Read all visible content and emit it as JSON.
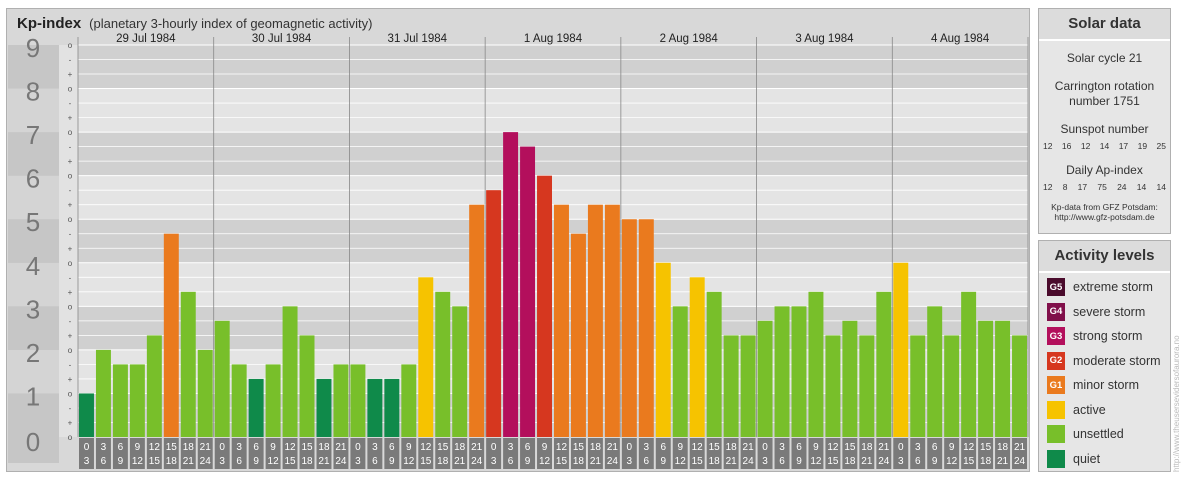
{
  "header": {
    "title": "Kp-index",
    "subtitle": "(planetary 3-hourly index of geomagnetic activity)"
  },
  "colors": {
    "quiet": "#0f8a4a",
    "unsettled": "#78bf2a",
    "active": "#f6c300",
    "G1": "#ea7a1e",
    "G2": "#d6371f",
    "G3": "#b30f5c",
    "G4": "#800f4a",
    "G5": "#4a0b2c"
  },
  "chart_data": {
    "type": "bar",
    "y_range": [
      0,
      9
    ],
    "y_ticks": [
      "0",
      "1",
      "2",
      "3",
      "4",
      "5",
      "6",
      "7",
      "8",
      "9"
    ],
    "sub_ticks": [
      "o",
      "+",
      "-"
    ],
    "days": [
      "29 Jul 1984",
      "30 Jul 1984",
      "31 Jul 1984",
      "1 Aug 1984",
      "2 Aug 1984",
      "3 Aug 1984",
      "4 Aug 1984"
    ],
    "hour_labels": [
      [
        "0",
        "3"
      ],
      [
        "3",
        "6"
      ],
      [
        "6",
        "9"
      ],
      [
        "9",
        "12"
      ],
      [
        "12",
        "15"
      ],
      [
        "15",
        "18"
      ],
      [
        "18",
        "21"
      ],
      [
        "21",
        "24"
      ]
    ],
    "values": [
      1.0,
      2.0,
      1.667,
      1.667,
      2.333,
      4.667,
      3.333,
      2.0,
      2.667,
      1.667,
      1.333,
      1.667,
      3.0,
      2.333,
      1.333,
      1.667,
      1.667,
      1.333,
      1.333,
      1.667,
      3.667,
      3.333,
      3.0,
      5.333,
      5.667,
      7.0,
      6.667,
      6.0,
      5.333,
      4.667,
      5.333,
      5.333,
      5.0,
      5.0,
      4.0,
      3.0,
      3.667,
      3.333,
      2.333,
      2.333,
      2.667,
      3.0,
      3.0,
      3.333,
      2.333,
      2.667,
      2.333,
      3.333,
      4.0,
      2.333,
      3.0,
      2.333,
      3.333,
      2.667,
      2.667,
      2.333
    ],
    "levels": [
      "quiet",
      "unsettled",
      "unsettled",
      "unsettled",
      "unsettled",
      "G1",
      "unsettled",
      "unsettled",
      "unsettled",
      "unsettled",
      "quiet",
      "unsettled",
      "unsettled",
      "unsettled",
      "quiet",
      "unsettled",
      "unsettled",
      "quiet",
      "quiet",
      "unsettled",
      "active",
      "unsettled",
      "unsettled",
      "G1",
      "G2",
      "G3",
      "G3",
      "G2",
      "G1",
      "G1",
      "G1",
      "G1",
      "G1",
      "G1",
      "active",
      "unsettled",
      "active",
      "unsettled",
      "unsettled",
      "unsettled",
      "unsettled",
      "unsettled",
      "unsettled",
      "unsettled",
      "unsettled",
      "unsettled",
      "unsettled",
      "unsettled",
      "active",
      "unsettled",
      "unsettled",
      "unsettled",
      "unsettled",
      "unsettled",
      "unsettled",
      "unsettled"
    ]
  },
  "solar": {
    "title": "Solar data",
    "cycle": "Solar cycle 21",
    "carrington_1": "Carrington rotation",
    "carrington_2": "number 1751",
    "sunspot_title": "Sunspot number",
    "sunspot": [
      "12",
      "16",
      "12",
      "14",
      "17",
      "19",
      "25"
    ],
    "ap_title": "Daily Ap-index",
    "ap": [
      "12",
      "8",
      "17",
      "75",
      "24",
      "14",
      "14"
    ],
    "source_1": "Kp-data from GFZ Potsdam:",
    "source_2": "http://www.gfz-potsdam.de"
  },
  "activity": {
    "title": "Activity levels",
    "items": [
      {
        "code": "G5",
        "label": "extreme storm",
        "color": "#4a0b2c"
      },
      {
        "code": "G4",
        "label": "severe storm",
        "color": "#800f4a"
      },
      {
        "code": "G3",
        "label": "strong storm",
        "color": "#b30f5c"
      },
      {
        "code": "G2",
        "label": "moderate storm",
        "color": "#d6371f"
      },
      {
        "code": "G1",
        "label": "minor storm",
        "color": "#ea7a1e"
      },
      {
        "code": "",
        "label": "active",
        "color": "#f6c300"
      },
      {
        "code": "",
        "label": "unsettled",
        "color": "#78bf2a"
      },
      {
        "code": "",
        "label": "quiet",
        "color": "#0f8a4a"
      }
    ]
  },
  "watermark": "http://www.theusersevidersofaurora.no"
}
